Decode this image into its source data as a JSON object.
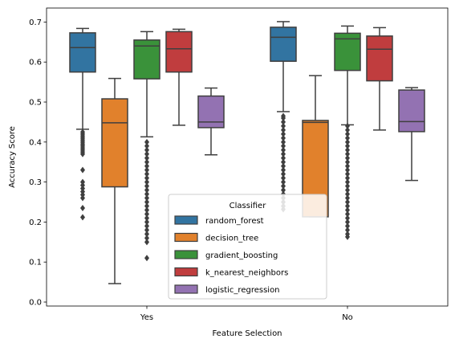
{
  "chart_data": {
    "type": "box",
    "xlabel": "Feature Selection",
    "ylabel": "Accuracy Score",
    "categories": [
      "Yes",
      "No"
    ],
    "ylim": [
      -0.01,
      0.735
    ],
    "yticks": [
      "0.0",
      "0.1",
      "0.2",
      "0.3",
      "0.4",
      "0.5",
      "0.6",
      "0.7"
    ],
    "legend": {
      "title": "Classifier",
      "placement": "lower-center"
    },
    "series": [
      {
        "name": "random_forest",
        "color": "#3274a1",
        "boxes": [
          {
            "whisker_low": 0.432,
            "q1": 0.575,
            "median": 0.636,
            "q3": 0.673,
            "whisker_high": 0.684,
            "outliers": [
              0.212,
              0.235,
              0.26,
              0.268,
              0.276,
              0.284,
              0.292,
              0.3,
              0.33,
              0.37,
              0.375,
              0.38,
              0.385,
              0.39,
              0.395,
              0.4,
              0.405,
              0.41,
              0.415,
              0.42,
              0.425
            ]
          },
          {
            "whisker_low": 0.476,
            "q1": 0.602,
            "median": 0.662,
            "q3": 0.687,
            "whisker_high": 0.701,
            "outliers": [
              0.232,
              0.24,
              0.25,
              0.26,
              0.27,
              0.28,
              0.29,
              0.3,
              0.31,
              0.32,
              0.33,
              0.34,
              0.35,
              0.36,
              0.37,
              0.38,
              0.39,
              0.4,
              0.41,
              0.42,
              0.43,
              0.44,
              0.45,
              0.46,
              0.465
            ]
          }
        ]
      },
      {
        "name": "decision_tree",
        "color": "#e1812c",
        "boxes": [
          {
            "whisker_low": 0.046,
            "q1": 0.288,
            "median": 0.448,
            "q3": 0.508,
            "whisker_high": 0.559,
            "outliers": []
          },
          {
            "whisker_low": 0.213,
            "q1": 0.213,
            "median": 0.449,
            "q3": 0.454,
            "whisker_high": 0.566,
            "outliers": []
          }
        ]
      },
      {
        "name": "gradient_boosting",
        "color": "#3a923a",
        "boxes": [
          {
            "whisker_low": 0.413,
            "q1": 0.558,
            "median": 0.64,
            "q3": 0.655,
            "whisker_high": 0.676,
            "outliers": [
              0.11,
              0.15,
              0.16,
              0.17,
              0.18,
              0.19,
              0.2,
              0.21,
              0.22,
              0.23,
              0.24,
              0.25,
              0.26,
              0.27,
              0.28,
              0.29,
              0.3,
              0.31,
              0.32,
              0.33,
              0.34,
              0.35,
              0.36,
              0.37,
              0.38,
              0.39,
              0.4
            ]
          },
          {
            "whisker_low": 0.443,
            "q1": 0.579,
            "median": 0.658,
            "q3": 0.672,
            "whisker_high": 0.69,
            "outliers": [
              0.163,
              0.17,
              0.18,
              0.19,
              0.2,
              0.21,
              0.22,
              0.23,
              0.24,
              0.25,
              0.26,
              0.27,
              0.28,
              0.29,
              0.3,
              0.31,
              0.32,
              0.33,
              0.34,
              0.35,
              0.36,
              0.37,
              0.38,
              0.39,
              0.4,
              0.41,
              0.42,
              0.43,
              0.44
            ]
          }
        ]
      },
      {
        "name": "k_nearest_neighbors",
        "color": "#c03d3e",
        "boxes": [
          {
            "whisker_low": 0.442,
            "q1": 0.575,
            "median": 0.633,
            "q3": 0.676,
            "whisker_high": 0.682,
            "outliers": []
          },
          {
            "whisker_low": 0.43,
            "q1": 0.553,
            "median": 0.632,
            "q3": 0.665,
            "whisker_high": 0.686,
            "outliers": []
          }
        ]
      },
      {
        "name": "logistic_regression",
        "color": "#9372b2",
        "boxes": [
          {
            "whisker_low": 0.368,
            "q1": 0.436,
            "median": 0.45,
            "q3": 0.515,
            "whisker_high": 0.535,
            "outliers": []
          },
          {
            "whisker_low": 0.304,
            "q1": 0.426,
            "median": 0.451,
            "q3": 0.53,
            "whisker_high": 0.536,
            "outliers": []
          }
        ]
      }
    ]
  }
}
